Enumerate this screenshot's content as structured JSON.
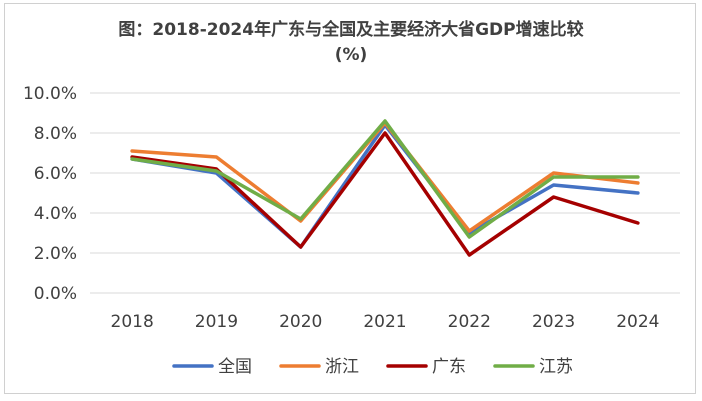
{
  "chart_data": {
    "type": "line",
    "title_line1": "图：2018-2024年广东与全国及主要经济大省GDP增速比较",
    "title_line2": "(%)",
    "categories": [
      "2018",
      "2019",
      "2020",
      "2021",
      "2022",
      "2023",
      "2024"
    ],
    "y_ticks": [
      "0.0%",
      "2.0%",
      "4.0%",
      "6.0%",
      "8.0%",
      "10.0%"
    ],
    "ylim": [
      0,
      10
    ],
    "grid": true,
    "legend_position": "bottom",
    "series": [
      {
        "name": "全国",
        "color": "#4472C4",
        "values": [
          6.7,
          6.0,
          2.3,
          8.4,
          3.0,
          5.4,
          5.0
        ]
      },
      {
        "name": "浙江",
        "color": "#ED7D31",
        "values": [
          7.1,
          6.8,
          3.6,
          8.5,
          3.1,
          6.0,
          5.5
        ]
      },
      {
        "name": "广东",
        "color": "#A50000",
        "values": [
          6.8,
          6.2,
          2.3,
          8.0,
          1.9,
          4.8,
          3.5
        ]
      },
      {
        "name": "江苏",
        "color": "#70AD47",
        "values": [
          6.7,
          6.1,
          3.7,
          8.6,
          2.8,
          5.8,
          5.8
        ]
      }
    ]
  }
}
